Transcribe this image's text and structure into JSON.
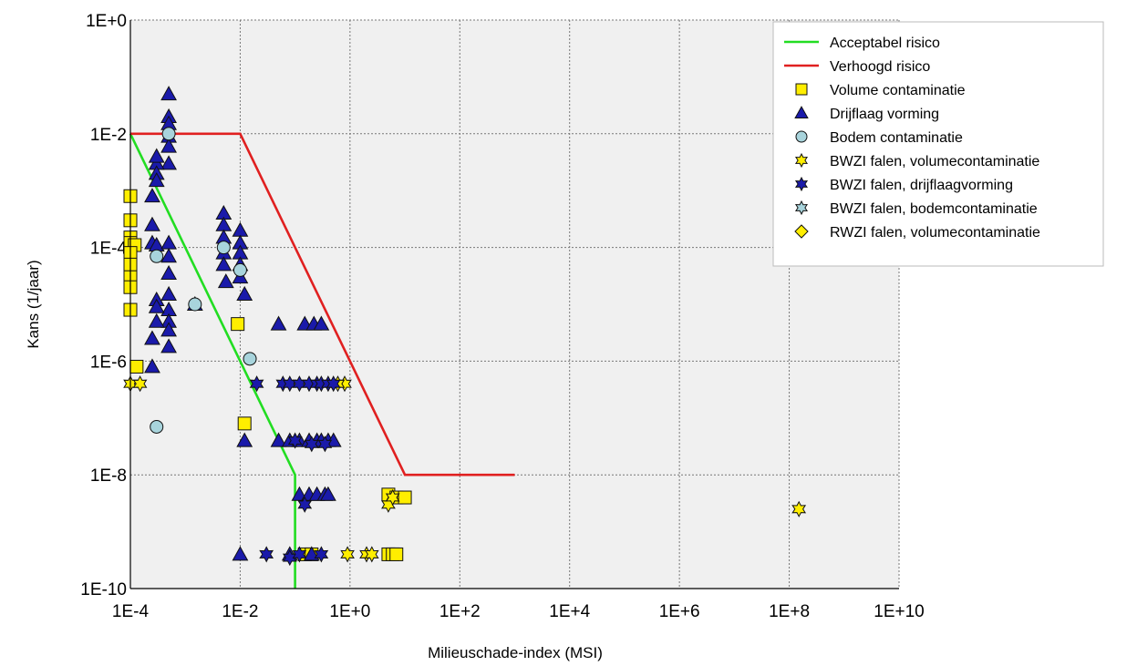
{
  "chart_data": {
    "type": "scatter",
    "title": "",
    "xlabel": "Milieuschade-index (MSI)",
    "ylabel": "Kans (1/jaar)",
    "x_scale": "log",
    "y_scale": "log",
    "xlim": [
      0.0001,
      10000000000
    ],
    "ylim": [
      1e-10,
      1
    ],
    "x_ticks": [
      "1E-4",
      "1E-2",
      "1E+0",
      "1E+2",
      "1E+4",
      "1E+6",
      "1E+8",
      "1E+10"
    ],
    "y_ticks": [
      "1E-10",
      "1E-8",
      "1E-6",
      "1E-4",
      "1E-2",
      "1E+0"
    ],
    "grid": true,
    "legend_position": "top-right",
    "lines": [
      {
        "name": "Acceptabel risico",
        "color": "#22dd22",
        "points": [
          [
            0.0001,
            0.01
          ],
          [
            0.1,
            1e-08
          ],
          [
            0.1,
            1e-10
          ]
        ]
      },
      {
        "name": "Verhoogd risico",
        "color": "#e02020",
        "points": [
          [
            0.0001,
            0.01
          ],
          [
            0.01,
            0.01
          ],
          [
            10,
            1e-08
          ],
          [
            1000,
            1e-08
          ]
        ]
      }
    ],
    "series": [
      {
        "name": "Volume contaminatie",
        "marker": "square",
        "color": "#ffee00",
        "points": [
          [
            0.0001,
            0.0008
          ],
          [
            0.0001,
            0.0003
          ],
          [
            0.0001,
            0.00015
          ],
          [
            0.0001,
            0.00012
          ],
          [
            0.00012,
            0.00011
          ],
          [
            0.0001,
            8e-05
          ],
          [
            0.0001,
            5e-05
          ],
          [
            0.0001,
            3e-05
          ],
          [
            0.0001,
            2e-05
          ],
          [
            0.0001,
            8e-06
          ],
          [
            0.00013,
            8e-07
          ],
          [
            0.009,
            4.5e-06
          ],
          [
            0.012,
            8e-08
          ],
          [
            5,
            4.5e-09
          ],
          [
            7,
            4e-09
          ],
          [
            10,
            4e-09
          ],
          [
            0.15,
            4e-10
          ],
          [
            0.2,
            4e-10
          ],
          [
            5,
            4e-10
          ],
          [
            6,
            4e-10
          ],
          [
            7,
            4e-10
          ]
        ]
      },
      {
        "name": "Drijflaag vorming",
        "marker": "triangle",
        "color": "#1a1aaa",
        "points": [
          [
            0.0005,
            0.05
          ],
          [
            0.0005,
            0.02
          ],
          [
            0.0005,
            0.015
          ],
          [
            0.0005,
            0.009
          ],
          [
            0.0005,
            0.006
          ],
          [
            0.0005,
            0.003
          ],
          [
            0.0003,
            0.003
          ],
          [
            0.0003,
            0.004
          ],
          [
            0.0003,
            0.002
          ],
          [
            0.0003,
            0.0015
          ],
          [
            0.00025,
            0.0008
          ],
          [
            0.00025,
            0.00025
          ],
          [
            0.00025,
            0.00012
          ],
          [
            0.0003,
            0.00011
          ],
          [
            0.0005,
            0.00012
          ],
          [
            0.0005,
            7e-05
          ],
          [
            0.0005,
            3.5e-05
          ],
          [
            0.0005,
            1.5e-05
          ],
          [
            0.0003,
            1.2e-05
          ],
          [
            0.0005,
            8e-06
          ],
          [
            0.0005,
            5e-06
          ],
          [
            0.0003,
            9e-06
          ],
          [
            0.0003,
            5e-06
          ],
          [
            0.0005,
            3.5e-06
          ],
          [
            0.00025,
            2.5e-06
          ],
          [
            0.0005,
            1.8e-06
          ],
          [
            0.00025,
            8e-07
          ],
          [
            0.0015,
            1e-05
          ],
          [
            0.005,
            0.0004
          ],
          [
            0.005,
            0.00025
          ],
          [
            0.005,
            0.00015
          ],
          [
            0.005,
            8e-05
          ],
          [
            0.005,
            5e-05
          ],
          [
            0.0055,
            2.5e-05
          ],
          [
            0.01,
            0.0002
          ],
          [
            0.01,
            0.00012
          ],
          [
            0.01,
            8e-05
          ],
          [
            0.01,
            5e-05
          ],
          [
            0.01,
            3e-05
          ],
          [
            0.012,
            1.5e-05
          ],
          [
            0.05,
            4.5e-06
          ],
          [
            0.15,
            4.5e-06
          ],
          [
            0.22,
            4.5e-06
          ],
          [
            0.3,
            4.5e-06
          ],
          [
            0.012,
            4e-08
          ],
          [
            0.05,
            4e-08
          ],
          [
            0.08,
            4e-08
          ],
          [
            0.12,
            4e-08
          ],
          [
            0.18,
            4e-08
          ],
          [
            0.25,
            4e-08
          ],
          [
            0.3,
            4e-08
          ],
          [
            0.4,
            4e-08
          ],
          [
            0.5,
            4e-08
          ],
          [
            0.12,
            4.5e-09
          ],
          [
            0.18,
            4.5e-09
          ],
          [
            0.25,
            4.5e-09
          ],
          [
            0.35,
            4.5e-09
          ],
          [
            0.4,
            4.5e-09
          ],
          [
            0.01,
            4e-10
          ],
          [
            0.08,
            4e-10
          ],
          [
            0.2,
            4e-10
          ]
        ]
      },
      {
        "name": "Bodem contaminatie",
        "marker": "circle",
        "color": "#a8d4dc",
        "points": [
          [
            0.0005,
            0.01
          ],
          [
            0.0003,
            7e-05
          ],
          [
            0.0015,
            1e-05
          ],
          [
            0.005,
            0.0001
          ],
          [
            0.01,
            4e-05
          ],
          [
            0.015,
            1.1e-06
          ],
          [
            0.0003,
            7e-08
          ]
        ]
      },
      {
        "name": "BWZI falen, volumecontaminatie",
        "marker": "star",
        "color": "#ffee00",
        "points": [
          [
            0.0001,
            4e-07
          ],
          [
            0.00015,
            4e-07
          ],
          [
            0.8,
            4e-07
          ],
          [
            0.6,
            4e-07
          ],
          [
            0.9,
            4e-10
          ],
          [
            2,
            4e-10
          ],
          [
            2.5,
            4e-10
          ],
          [
            5,
            3e-09
          ],
          [
            6,
            4e-09
          ],
          [
            150000000,
            2.5e-09
          ]
        ]
      },
      {
        "name": "BWZI falen, drijflaagvorming",
        "marker": "star",
        "color": "#1a1aaa",
        "points": [
          [
            0.02,
            4e-07
          ],
          [
            0.06,
            4e-07
          ],
          [
            0.08,
            4e-07
          ],
          [
            0.12,
            4e-07
          ],
          [
            0.18,
            4e-07
          ],
          [
            0.25,
            4e-07
          ],
          [
            0.3,
            4e-07
          ],
          [
            0.4,
            4e-07
          ],
          [
            0.5,
            4e-07
          ],
          [
            0.1,
            4e-08
          ],
          [
            0.2,
            3.5e-08
          ],
          [
            0.35,
            3.5e-08
          ],
          [
            0.15,
            3e-09
          ],
          [
            0.03,
            4e-10
          ],
          [
            0.08,
            3.5e-10
          ],
          [
            0.12,
            4e-10
          ],
          [
            0.3,
            4e-10
          ]
        ]
      },
      {
        "name": "BWZI falen, bodemcontaminatie",
        "marker": "star",
        "color": "#a8d4dc",
        "points": []
      },
      {
        "name": "RWZI falen, volumecontaminatie",
        "marker": "diamond",
        "color": "#ffee00",
        "points": []
      }
    ]
  }
}
